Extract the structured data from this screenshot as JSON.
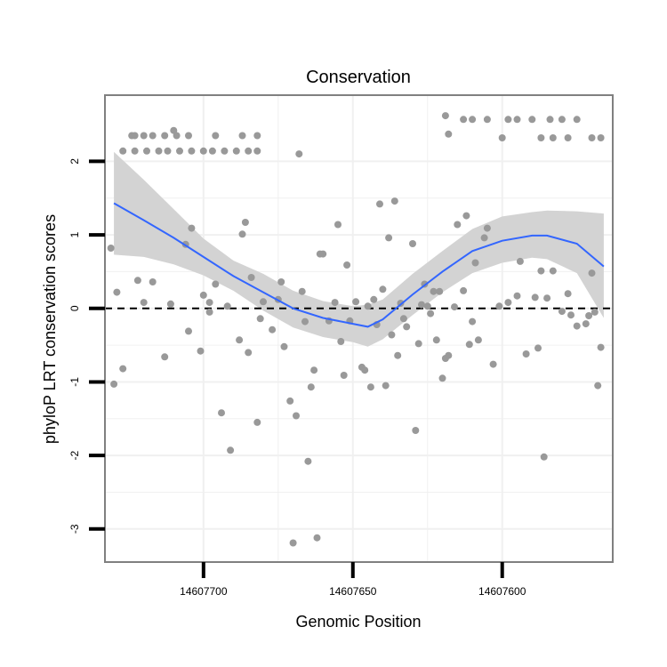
{
  "chart_data": {
    "type": "scatter",
    "title": "Conservation",
    "xlabel": "Genomic Position",
    "ylabel": "phyloP LRT conservation scores",
    "x_reversed": true,
    "xlim": [
      14607733,
      14607563
    ],
    "ylim": [
      -3.45,
      2.9
    ],
    "x_ticks": [
      {
        "value": 14607700,
        "label": "14607700"
      },
      {
        "value": 14607650,
        "label": "14607650"
      },
      {
        "value": 14607600,
        "label": "14607600"
      }
    ],
    "y_ticks": [
      {
        "value": 2,
        "label": "2"
      },
      {
        "value": 1,
        "label": "1"
      },
      {
        "value": 0,
        "label": "0"
      },
      {
        "value": -1,
        "label": "-1"
      },
      {
        "value": -2,
        "label": "-2"
      },
      {
        "value": -3,
        "label": "-3"
      }
    ],
    "reference_line": {
      "y": 0,
      "style": "dashed",
      "color": "#000000"
    },
    "grid": true,
    "colors": {
      "points": "#999999",
      "smooth_line": "#3366FF",
      "confidence_band": "#D3D3D3",
      "panel_border": "#808080",
      "grid": "#F0F0F0"
    },
    "points": [
      {
        "x": 14607724,
        "y": 2.35
      },
      {
        "x": 14607723,
        "y": 2.35
      },
      {
        "x": 14607720,
        "y": 2.35
      },
      {
        "x": 14607717,
        "y": 2.35
      },
      {
        "x": 14607713,
        "y": 2.35
      },
      {
        "x": 14607709,
        "y": 2.35
      },
      {
        "x": 14607705,
        "y": 2.35
      },
      {
        "x": 14607696,
        "y": 2.35
      },
      {
        "x": 14607687,
        "y": 2.35
      },
      {
        "x": 14607682,
        "y": 2.35
      },
      {
        "x": 14607710,
        "y": 2.42
      },
      {
        "x": 14607727,
        "y": 2.14
      },
      {
        "x": 14607723,
        "y": 2.14
      },
      {
        "x": 14607719,
        "y": 2.14
      },
      {
        "x": 14607715,
        "y": 2.14
      },
      {
        "x": 14607712,
        "y": 2.14
      },
      {
        "x": 14607708,
        "y": 2.14
      },
      {
        "x": 14607704,
        "y": 2.14
      },
      {
        "x": 14607700,
        "y": 2.14
      },
      {
        "x": 14607697,
        "y": 2.14
      },
      {
        "x": 14607693,
        "y": 2.14
      },
      {
        "x": 14607689,
        "y": 2.14
      },
      {
        "x": 14607685,
        "y": 2.14
      },
      {
        "x": 14607682,
        "y": 2.14
      },
      {
        "x": 14607668,
        "y": 2.1
      },
      {
        "x": 14607619,
        "y": 2.62
      },
      {
        "x": 14607610,
        "y": 2.57
      },
      {
        "x": 14607605,
        "y": 2.57
      },
      {
        "x": 14607598,
        "y": 2.57
      },
      {
        "x": 14607590,
        "y": 2.57
      },
      {
        "x": 14607584,
        "y": 2.57
      },
      {
        "x": 14607580,
        "y": 2.57
      },
      {
        "x": 14607575,
        "y": 2.57
      },
      {
        "x": 14607613,
        "y": 2.57
      },
      {
        "x": 14607595,
        "y": 2.57
      },
      {
        "x": 14607618,
        "y": 2.37
      },
      {
        "x": 14607600,
        "y": 2.32
      },
      {
        "x": 14607587,
        "y": 2.32
      },
      {
        "x": 14607583,
        "y": 2.32
      },
      {
        "x": 14607578,
        "y": 2.32
      },
      {
        "x": 14607570,
        "y": 2.32
      },
      {
        "x": 14607567,
        "y": 2.32
      },
      {
        "x": 14607731,
        "y": 0.82
      },
      {
        "x": 14607729,
        "y": 0.22
      },
      {
        "x": 14607730,
        "y": -1.03
      },
      {
        "x": 14607727,
        "y": -0.82
      },
      {
        "x": 14607722,
        "y": 0.38
      },
      {
        "x": 14607720,
        "y": 0.08
      },
      {
        "x": 14607717,
        "y": 0.36
      },
      {
        "x": 14607713,
        "y": -0.66
      },
      {
        "x": 14607711,
        "y": 0.06
      },
      {
        "x": 14607706,
        "y": 0.87
      },
      {
        "x": 14607705,
        "y": -0.31
      },
      {
        "x": 14607704,
        "y": 1.09
      },
      {
        "x": 14607701,
        "y": -0.58
      },
      {
        "x": 14607700,
        "y": 0.18
      },
      {
        "x": 14607698,
        "y": 0.08
      },
      {
        "x": 14607698,
        "y": -0.05
      },
      {
        "x": 14607696,
        "y": 0.33
      },
      {
        "x": 14607694,
        "y": -1.42
      },
      {
        "x": 14607692,
        "y": 0.03
      },
      {
        "x": 14607691,
        "y": -1.93
      },
      {
        "x": 14607688,
        "y": -0.43
      },
      {
        "x": 14607687,
        "y": 1.01
      },
      {
        "x": 14607686,
        "y": 1.17
      },
      {
        "x": 14607685,
        "y": -0.6
      },
      {
        "x": 14607684,
        "y": 0.42
      },
      {
        "x": 14607682,
        "y": -1.55
      },
      {
        "x": 14607681,
        "y": -0.14
      },
      {
        "x": 14607680,
        "y": 0.09
      },
      {
        "x": 14607677,
        "y": -0.29
      },
      {
        "x": 14607675,
        "y": 0.12
      },
      {
        "x": 14607674,
        "y": 0.36
      },
      {
        "x": 14607673,
        "y": -0.52
      },
      {
        "x": 14607671,
        "y": -1.26
      },
      {
        "x": 14607670,
        "y": -3.19
      },
      {
        "x": 14607669,
        "y": -1.46
      },
      {
        "x": 14607667,
        "y": 0.23
      },
      {
        "x": 14607666,
        "y": -0.18
      },
      {
        "x": 14607665,
        "y": -2.08
      },
      {
        "x": 14607664,
        "y": -1.07
      },
      {
        "x": 14607663,
        "y": -0.84
      },
      {
        "x": 14607662,
        "y": -3.12
      },
      {
        "x": 14607661,
        "y": 0.74
      },
      {
        "x": 14607660,
        "y": 0.74
      },
      {
        "x": 14607658,
        "y": -0.17
      },
      {
        "x": 14607656,
        "y": 0.08
      },
      {
        "x": 14607655,
        "y": 1.14
      },
      {
        "x": 14607654,
        "y": -0.45
      },
      {
        "x": 14607653,
        "y": -0.91
      },
      {
        "x": 14607652,
        "y": 0.59
      },
      {
        "x": 14607651,
        "y": -0.17
      },
      {
        "x": 14607649,
        "y": 0.09
      },
      {
        "x": 14607647,
        "y": -0.8
      },
      {
        "x": 14607646,
        "y": -0.84
      },
      {
        "x": 14607645,
        "y": 0.03
      },
      {
        "x": 14607644,
        "y": -1.07
      },
      {
        "x": 14607643,
        "y": 0.12
      },
      {
        "x": 14607642,
        "y": -0.22
      },
      {
        "x": 14607641,
        "y": 1.42
      },
      {
        "x": 14607640,
        "y": 0.26
      },
      {
        "x": 14607639,
        "y": -1.05
      },
      {
        "x": 14607638,
        "y": 0.96
      },
      {
        "x": 14607637,
        "y": -0.36
      },
      {
        "x": 14607636,
        "y": 1.46
      },
      {
        "x": 14607635,
        "y": -0.64
      },
      {
        "x": 14607634,
        "y": 0.07
      },
      {
        "x": 14607633,
        "y": -0.14
      },
      {
        "x": 14607632,
        "y": -0.25
      },
      {
        "x": 14607630,
        "y": 0.88
      },
      {
        "x": 14607629,
        "y": -1.66
      },
      {
        "x": 14607628,
        "y": -0.48
      },
      {
        "x": 14607627,
        "y": 0.05
      },
      {
        "x": 14607626,
        "y": 0.33
      },
      {
        "x": 14607625,
        "y": 0.03
      },
      {
        "x": 14607624,
        "y": -0.07
      },
      {
        "x": 14607623,
        "y": 0.23
      },
      {
        "x": 14607622,
        "y": -0.43
      },
      {
        "x": 14607621,
        "y": 0.23
      },
      {
        "x": 14607620,
        "y": -0.95
      },
      {
        "x": 14607619,
        "y": -0.68
      },
      {
        "x": 14607618,
        "y": -0.64
      },
      {
        "x": 14607616,
        "y": 0.02
      },
      {
        "x": 14607615,
        "y": 1.14
      },
      {
        "x": 14607613,
        "y": 0.24
      },
      {
        "x": 14607612,
        "y": 1.26
      },
      {
        "x": 14607611,
        "y": -0.49
      },
      {
        "x": 14607610,
        "y": -0.18
      },
      {
        "x": 14607609,
        "y": 0.62
      },
      {
        "x": 14607608,
        "y": -0.43
      },
      {
        "x": 14607606,
        "y": 0.96
      },
      {
        "x": 14607605,
        "y": 1.09
      },
      {
        "x": 14607603,
        "y": -0.76
      },
      {
        "x": 14607601,
        "y": 0.03
      },
      {
        "x": 14607598,
        "y": 0.08
      },
      {
        "x": 14607595,
        "y": 0.17
      },
      {
        "x": 14607594,
        "y": 0.64
      },
      {
        "x": 14607592,
        "y": -0.62
      },
      {
        "x": 14607589,
        "y": 0.15
      },
      {
        "x": 14607588,
        "y": -0.54
      },
      {
        "x": 14607587,
        "y": 0.51
      },
      {
        "x": 14607586,
        "y": -2.02
      },
      {
        "x": 14607585,
        "y": 0.14
      },
      {
        "x": 14607583,
        "y": 0.51
      },
      {
        "x": 14607580,
        "y": -0.04
      },
      {
        "x": 14607578,
        "y": 0.2
      },
      {
        "x": 14607577,
        "y": -0.09
      },
      {
        "x": 14607575,
        "y": -0.24
      },
      {
        "x": 14607572,
        "y": -0.21
      },
      {
        "x": 14607571,
        "y": -0.1
      },
      {
        "x": 14607570,
        "y": 0.48
      },
      {
        "x": 14607569,
        "y": -0.05
      },
      {
        "x": 14607568,
        "y": -1.05
      },
      {
        "x": 14607567,
        "y": -0.53
      }
    ],
    "smooth_line": [
      {
        "x": 14607730,
        "y": 1.43
      },
      {
        "x": 14607720,
        "y": 1.2
      },
      {
        "x": 14607710,
        "y": 0.96
      },
      {
        "x": 14607700,
        "y": 0.7
      },
      {
        "x": 14607690,
        "y": 0.44
      },
      {
        "x": 14607680,
        "y": 0.22
      },
      {
        "x": 14607670,
        "y": 0.0
      },
      {
        "x": 14607660,
        "y": -0.13
      },
      {
        "x": 14607650,
        "y": -0.21
      },
      {
        "x": 14607645,
        "y": -0.25
      },
      {
        "x": 14607640,
        "y": -0.15
      },
      {
        "x": 14607630,
        "y": 0.19
      },
      {
        "x": 14607620,
        "y": 0.5
      },
      {
        "x": 14607610,
        "y": 0.78
      },
      {
        "x": 14607600,
        "y": 0.92
      },
      {
        "x": 14607590,
        "y": 0.99
      },
      {
        "x": 14607585,
        "y": 0.99
      },
      {
        "x": 14607575,
        "y": 0.88
      },
      {
        "x": 14607566,
        "y": 0.57
      }
    ],
    "band_upper": [
      {
        "x": 14607730,
        "y": 2.13
      },
      {
        "x": 14607720,
        "y": 1.75
      },
      {
        "x": 14607710,
        "y": 1.35
      },
      {
        "x": 14607700,
        "y": 0.95
      },
      {
        "x": 14607690,
        "y": 0.65
      },
      {
        "x": 14607680,
        "y": 0.47
      },
      {
        "x": 14607670,
        "y": 0.24
      },
      {
        "x": 14607660,
        "y": 0.1
      },
      {
        "x": 14607650,
        "y": 0.03
      },
      {
        "x": 14607645,
        "y": 0.05
      },
      {
        "x": 14607640,
        "y": 0.12
      },
      {
        "x": 14607630,
        "y": 0.47
      },
      {
        "x": 14607620,
        "y": 0.78
      },
      {
        "x": 14607610,
        "y": 1.08
      },
      {
        "x": 14607600,
        "y": 1.25
      },
      {
        "x": 14607590,
        "y": 1.31
      },
      {
        "x": 14607585,
        "y": 1.33
      },
      {
        "x": 14607575,
        "y": 1.32
      },
      {
        "x": 14607566,
        "y": 1.29
      }
    ],
    "band_lower": [
      {
        "x": 14607730,
        "y": 0.73
      },
      {
        "x": 14607720,
        "y": 0.7
      },
      {
        "x": 14607710,
        "y": 0.6
      },
      {
        "x": 14607700,
        "y": 0.45
      },
      {
        "x": 14607690,
        "y": 0.24
      },
      {
        "x": 14607680,
        "y": -0.03
      },
      {
        "x": 14607670,
        "y": -0.26
      },
      {
        "x": 14607660,
        "y": -0.39
      },
      {
        "x": 14607650,
        "y": -0.46
      },
      {
        "x": 14607645,
        "y": -0.52
      },
      {
        "x": 14607640,
        "y": -0.42
      },
      {
        "x": 14607630,
        "y": -0.09
      },
      {
        "x": 14607620,
        "y": 0.22
      },
      {
        "x": 14607610,
        "y": 0.48
      },
      {
        "x": 14607600,
        "y": 0.62
      },
      {
        "x": 14607590,
        "y": 0.69
      },
      {
        "x": 14607585,
        "y": 0.67
      },
      {
        "x": 14607575,
        "y": 0.48
      },
      {
        "x": 14607566,
        "y": -0.13
      }
    ]
  }
}
